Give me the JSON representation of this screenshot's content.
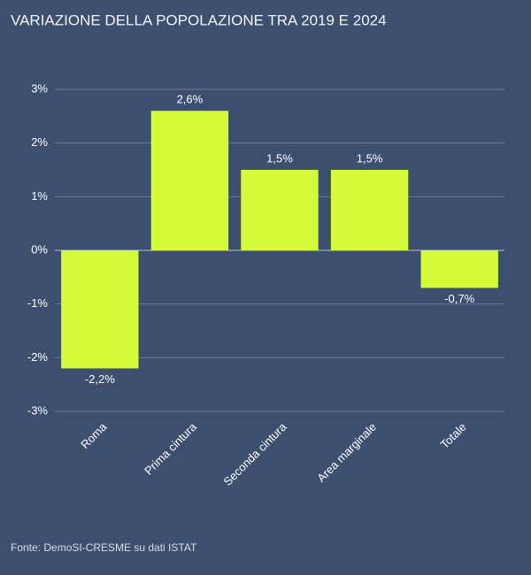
{
  "chart_data": {
    "type": "bar",
    "title": "VARIAZIONE DELLA POPOLAZIONE TRA 2019 E 2024",
    "categories": [
      "Roma",
      "Prima cintura",
      "Seconda cintura",
      "Area marginale",
      "Totale"
    ],
    "values": [
      -2.2,
      2.6,
      1.5,
      1.5,
      -0.7
    ],
    "value_labels": [
      "-2,2%",
      "2,6%",
      "1,5%",
      "1,5%",
      "-0,7%"
    ],
    "color": "#d4fc3a",
    "ylim": [
      -3,
      3
    ],
    "yticks": [
      {
        "value": -3,
        "label": "-3%"
      },
      {
        "value": -2,
        "label": "-2%"
      },
      {
        "value": -1,
        "label": "-1%"
      },
      {
        "value": 0,
        "label": "0%"
      },
      {
        "value": 1,
        "label": "1%"
      },
      {
        "value": 2,
        "label": "2%"
      },
      {
        "value": 3,
        "label": "3%"
      }
    ],
    "grid": true,
    "source": "Fonte: DemoSI-CRESME su dati ISTAT"
  }
}
